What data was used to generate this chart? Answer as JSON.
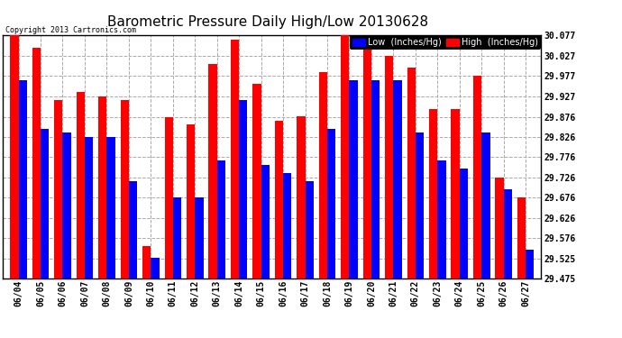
{
  "title": "Barometric Pressure Daily High/Low 20130628",
  "copyright": "Copyright 2013 Cartronics.com",
  "legend_low": "Low  (Inches/Hg)",
  "legend_high": "High  (Inches/Hg)",
  "dates": [
    "06/04",
    "06/05",
    "06/06",
    "06/07",
    "06/08",
    "06/09",
    "06/10",
    "06/11",
    "06/12",
    "06/13",
    "06/14",
    "06/15",
    "06/16",
    "06/17",
    "06/18",
    "06/19",
    "06/20",
    "06/21",
    "06/22",
    "06/23",
    "06/24",
    "06/25",
    "06/26",
    "06/27"
  ],
  "high_values": [
    30.077,
    30.047,
    29.917,
    29.937,
    29.927,
    29.917,
    29.557,
    29.876,
    29.856,
    30.007,
    30.067,
    29.957,
    29.867,
    29.877,
    29.987,
    30.077,
    30.057,
    30.027,
    29.997,
    29.896,
    29.896,
    29.977,
    29.726,
    29.676
  ],
  "low_values": [
    29.967,
    29.847,
    29.837,
    29.827,
    29.827,
    29.717,
    29.527,
    29.677,
    29.677,
    29.767,
    29.917,
    29.757,
    29.737,
    29.717,
    29.847,
    29.967,
    29.967,
    29.967,
    29.836,
    29.767,
    29.747,
    29.837,
    29.697,
    29.547
  ],
  "ylim_min": 29.475,
  "ylim_max": 30.077,
  "yticks": [
    29.475,
    29.525,
    29.576,
    29.626,
    29.676,
    29.726,
    29.776,
    29.826,
    29.876,
    29.927,
    29.977,
    30.027,
    30.077
  ],
  "ytick_labels": [
    "29.475",
    "29.525",
    "29.576",
    "29.626",
    "29.676",
    "29.726",
    "29.776",
    "29.826",
    "29.876",
    "29.927",
    "29.977",
    "30.027",
    "30.077"
  ],
  "bar_width": 0.38,
  "low_color": "#0000ff",
  "high_color": "#ff0000",
  "bg_color": "#ffffff",
  "grid_color": "#aaaaaa",
  "title_fontsize": 11,
  "tick_fontsize": 7,
  "legend_fontsize": 7,
  "border_color": "#000000"
}
